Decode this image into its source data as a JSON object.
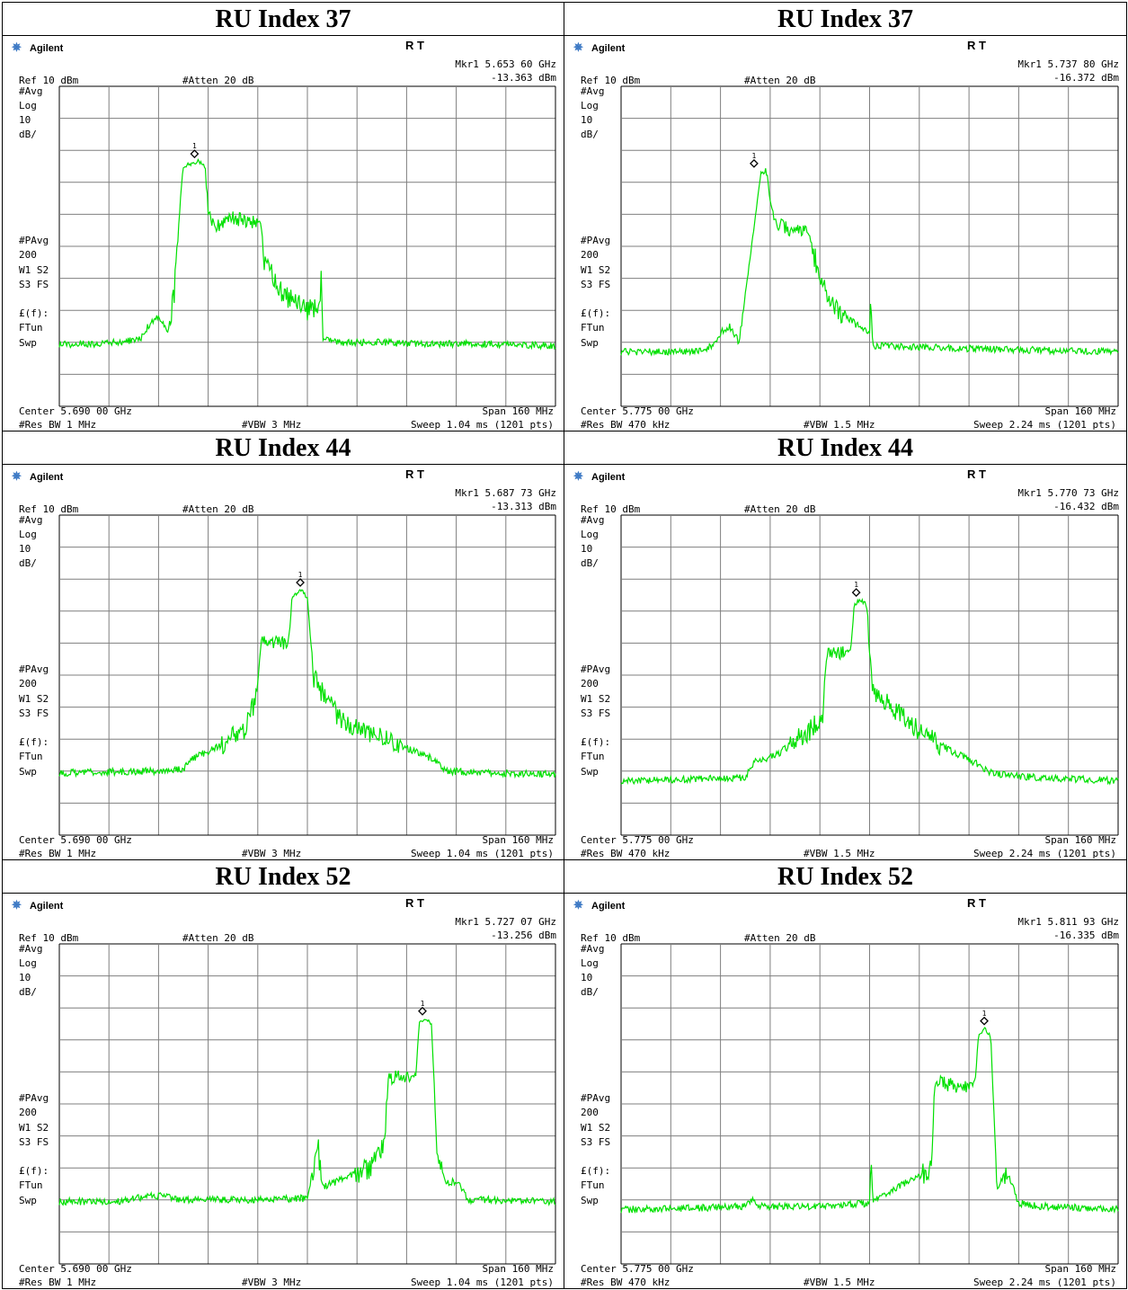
{
  "colors": {
    "trace": "#00e000",
    "grid": "#7f7f7f"
  },
  "chart_data": [
    {
      "type": "line",
      "title": "RU Index 37",
      "brand": "Agilent",
      "status": "R   T",
      "marker_label": "Mkr1  5.653 60 GHz",
      "marker_value": "-13.363 dBm",
      "ref": "Ref 10 dBm",
      "atten": "#Atten 20 dB",
      "left_labels": [
        "#Avg",
        "Log",
        "10",
        "dB/",
        "#PAvg",
        "200",
        "W1  S2",
        "S3  FS",
        "£(f):",
        "FTun",
        "Swp"
      ],
      "center": "Center 5.690 00 GHz",
      "span": "Span 160 MHz",
      "rbw": "#Res BW 1 MHz",
      "vbw": "#VBW 3 MHz",
      "sweep": "Sweep 1.04 ms (1201 pts)",
      "center_ghz": 5.69,
      "span_mhz": 160,
      "ylim": [
        -90,
        10
      ],
      "marker": {
        "x_ghz": 5.6536,
        "y_dbm": -13.363
      },
      "series": [
        {
          "x_ghz": [
            5.61,
            5.62,
            5.63,
            5.636,
            5.64,
            5.642,
            5.645,
            5.647,
            5.65,
            5.655,
            5.657,
            5.658,
            5.66,
            5.665,
            5.67,
            5.675,
            5.676,
            5.68,
            5.682,
            5.685,
            5.688,
            5.69,
            5.694,
            5.6945,
            5.695,
            5.7,
            5.71,
            5.73,
            5.75,
            5.77
          ],
          "y_dbm": [
            -70.5,
            -70.5,
            -70,
            -69,
            -63,
            -62,
            -67,
            -55,
            -15,
            -13.4,
            -15,
            -30,
            -34,
            -31,
            -32,
            -33,
            -45,
            -51,
            -55,
            -57,
            -59,
            -60,
            -58,
            -50,
            -69,
            -70,
            -70,
            -70.5,
            -70.5,
            -71
          ]
        }
      ]
    },
    {
      "type": "line",
      "title": "RU Index 37",
      "brand": "Agilent",
      "status": "R   T",
      "marker_label": "Mkr1  5.737 80 GHz",
      "marker_value": "-16.372 dBm",
      "ref": "Ref 10 dBm",
      "atten": "#Atten 20 dB",
      "left_labels": [
        "#Avg",
        "Log",
        "10",
        "dB/",
        "#PAvg",
        "200",
        "W1  S2",
        "S3  FS",
        "£(f):",
        "FTun",
        "Swp"
      ],
      "center": "Center 5.775 00 GHz",
      "span": "Span 160 MHz",
      "rbw": "#Res BW 470 kHz",
      "vbw": "#VBW 1.5 MHz",
      "sweep": "Sweep 2.24 ms (1201 pts)",
      "center_ghz": 5.775,
      "span_mhz": 160,
      "ylim": [
        -90,
        10
      ],
      "marker": {
        "x_ghz": 5.7378,
        "y_dbm": -16.372
      },
      "series": [
        {
          "x_ghz": [
            5.695,
            5.71,
            5.72,
            5.725,
            5.728,
            5.73,
            5.733,
            5.735,
            5.74,
            5.742,
            5.744,
            5.75,
            5.755,
            5.76,
            5.765,
            5.77,
            5.775,
            5.7755,
            5.776,
            5.79,
            5.81,
            5.855
          ],
          "y_dbm": [
            -73,
            -73,
            -72.5,
            -71,
            -66,
            -65,
            -70,
            -55,
            -17,
            -17.5,
            -32,
            -35,
            -36,
            -52,
            -60,
            -64,
            -67,
            -55,
            -71,
            -71.5,
            -72,
            -73
          ]
        }
      ]
    },
    {
      "type": "line",
      "title": "RU Index 44",
      "brand": "Agilent",
      "status": "R   T",
      "marker_label": "Mkr1  5.687 73 GHz",
      "marker_value": "-13.313 dBm",
      "ref": "Ref 10 dBm",
      "atten": "#Atten 20 dB",
      "left_labels": [
        "#Avg",
        "Log",
        "10",
        "dB/",
        "#PAvg",
        "200",
        "W1  S2",
        "S3  FS",
        "£(f):",
        "FTun",
        "Swp"
      ],
      "center": "Center 5.690 00 GHz",
      "span": "Span 160 MHz",
      "rbw": "#Res BW 1 MHz",
      "vbw": "#VBW 3 MHz",
      "sweep": "Sweep 1.04 ms (1201 pts)",
      "center_ghz": 5.69,
      "span_mhz": 160,
      "ylim": [
        -90,
        10
      ],
      "marker": {
        "x_ghz": 5.6877,
        "y_dbm": -13.313
      },
      "series": [
        {
          "x_ghz": [
            5.61,
            5.64,
            5.65,
            5.653,
            5.66,
            5.67,
            5.674,
            5.675,
            5.68,
            5.684,
            5.685,
            5.688,
            5.69,
            5.692,
            5.7,
            5.71,
            5.72,
            5.73,
            5.735,
            5.75,
            5.77
          ],
          "y_dbm": [
            -70.5,
            -70,
            -69.5,
            -66,
            -63,
            -57,
            -45,
            -29,
            -30,
            -30,
            -16,
            -13.3,
            -16,
            -41,
            -53,
            -58,
            -62,
            -66,
            -70,
            -70.5,
            -71
          ]
        }
      ]
    },
    {
      "type": "line",
      "title": "RU Index 44",
      "brand": "Agilent",
      "status": "R   T",
      "marker_label": "Mkr1  5.770 73 GHz",
      "marker_value": "-16.432 dBm",
      "ref": "Ref 10 dBm",
      "atten": "#Atten 20 dB",
      "left_labels": [
        "#Avg",
        "Log",
        "10",
        "dB/",
        "#PAvg",
        "200",
        "W1  S2",
        "S3  FS",
        "£(f):",
        "FTun",
        "Swp"
      ],
      "center": "Center 5.775 00 GHz",
      "span": "Span 160 MHz",
      "rbw": "#Res BW 470 kHz",
      "vbw": "#VBW 1.5 MHz",
      "sweep": "Sweep 2.24 ms (1201 pts)",
      "center_ghz": 5.775,
      "span_mhz": 160,
      "ylim": [
        -90,
        10
      ],
      "marker": {
        "x_ghz": 5.7707,
        "y_dbm": -16.432
      },
      "series": [
        {
          "x_ghz": [
            5.695,
            5.72,
            5.735,
            5.738,
            5.745,
            5.755,
            5.76,
            5.761,
            5.765,
            5.769,
            5.77,
            5.772,
            5.774,
            5.776,
            5.79,
            5.8,
            5.81,
            5.815,
            5.83,
            5.855
          ],
          "y_dbm": [
            -73,
            -72.5,
            -72,
            -67,
            -65,
            -58,
            -52,
            -34,
            -33,
            -32,
            -18,
            -16.4,
            -18,
            -45,
            -57,
            -63,
            -68,
            -71,
            -72,
            -73
          ]
        }
      ]
    },
    {
      "type": "line",
      "title": "RU Index 52",
      "brand": "Agilent",
      "status": "R   T",
      "marker_label": "Mkr1  5.727 07 GHz",
      "marker_value": "-13.256 dBm",
      "ref": "Ref 10 dBm",
      "atten": "#Atten 20 dB",
      "left_labels": [
        "#Avg",
        "Log",
        "10",
        "dB/",
        "#PAvg",
        "200",
        "W1  S2",
        "S3  FS",
        "£(f):",
        "FTun",
        "Swp"
      ],
      "center": "Center 5.690 00 GHz",
      "span": "Span 160 MHz",
      "rbw": "#Res BW 1 MHz",
      "vbw": "#VBW 3 MHz",
      "sweep": "Sweep 1.04 ms (1201 pts)",
      "center_ghz": 5.69,
      "span_mhz": 160,
      "ylim": [
        -90,
        10
      ],
      "marker": {
        "x_ghz": 5.7271,
        "y_dbm": -13.256
      },
      "series": [
        {
          "x_ghz": [
            5.61,
            5.63,
            5.64,
            5.65,
            5.67,
            5.69,
            5.6935,
            5.694,
            5.695,
            5.7,
            5.71,
            5.715,
            5.716,
            5.72,
            5.725,
            5.726,
            5.728,
            5.73,
            5.732,
            5.735,
            5.738,
            5.742,
            5.75,
            5.77
          ],
          "y_dbm": [
            -70.5,
            -70.5,
            -68.5,
            -70,
            -70,
            -69.5,
            -53,
            -60,
            -66,
            -64,
            -60,
            -52,
            -32,
            -31,
            -31,
            -15,
            -13.3,
            -15,
            -57,
            -65,
            -64,
            -70,
            -70,
            -70.5
          ]
        }
      ]
    },
    {
      "type": "line",
      "title": "RU Index 52",
      "brand": "Agilent",
      "status": "R   T",
      "marker_label": "Mkr1  5.811 93 GHz",
      "marker_value": "-16.335 dBm",
      "ref": "Ref 10 dBm",
      "atten": "#Atten 20 dB",
      "left_labels": [
        "#Avg",
        "Log",
        "10",
        "dB/",
        "#PAvg",
        "200",
        "W1  S2",
        "S3  FS",
        "£(f):",
        "FTun",
        "Swp"
      ],
      "center": "Center 5.775 00 GHz",
      "span": "Span 160 MHz",
      "rbw": "#Res BW 470 kHz",
      "vbw": "#VBW 1.5 MHz",
      "sweep": "Sweep 2.24 ms (1201 pts)",
      "center_ghz": 5.775,
      "span_mhz": 160,
      "ylim": [
        -90,
        10
      ],
      "marker": {
        "x_ghz": 5.8119,
        "y_dbm": -16.335
      },
      "series": [
        {
          "x_ghz": [
            5.695,
            5.72,
            5.735,
            5.737,
            5.74,
            5.76,
            5.775,
            5.7755,
            5.776,
            5.79,
            5.795,
            5.796,
            5.805,
            5.809,
            5.81,
            5.812,
            5.814,
            5.816,
            5.819,
            5.823,
            5.83,
            5.855
          ],
          "y_dbm": [
            -73,
            -72.5,
            -72,
            -70,
            -72,
            -72,
            -71,
            -55,
            -70,
            -63,
            -60,
            -33,
            -35,
            -33,
            -19,
            -16.3,
            -19,
            -66,
            -61,
            -71,
            -72,
            -73
          ]
        }
      ]
    }
  ]
}
